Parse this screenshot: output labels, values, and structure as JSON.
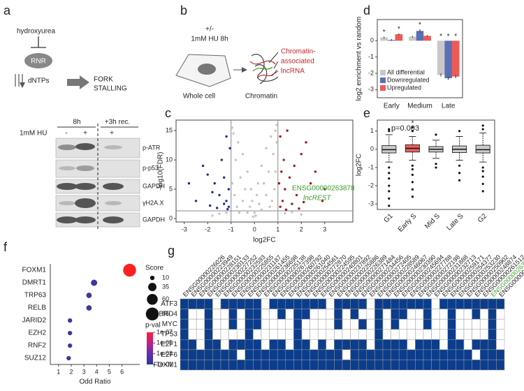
{
  "panel_a": {
    "label": "a",
    "drug": "hydroxyurea",
    "enzyme": "RNR",
    "product": "dNTPs",
    "outcome": [
      "FORK",
      "STALLING"
    ],
    "blot": {
      "timepoints": [
        "8h",
        "+3h rec."
      ],
      "treatment": "1mM HU",
      "lanes": [
        "-",
        "+",
        "+"
      ],
      "bands": [
        "p-ATR",
        "p-p53",
        "GAPDH",
        "γH2A.X",
        "GAPDH"
      ]
    }
  },
  "panel_b": {
    "label": "b",
    "treatment": [
      "+/-",
      "1mM HU 8h"
    ],
    "fractions": [
      "Whole cell",
      "Chromatin"
    ],
    "callout": [
      "Chromatin-",
      "associated",
      "lncRNA"
    ]
  },
  "chart_data": [
    {
      "panel": "c",
      "type": "scatter",
      "xlabel": "log2FC",
      "ylabel": "-log10(FDR)",
      "xlim": [
        -3.35,
        4.2
      ],
      "ylim": [
        -0.6,
        16.8
      ],
      "xticks": [
        -3,
        -2,
        -1,
        0,
        1,
        2,
        3
      ],
      "yticks": [
        0,
        5,
        10,
        15
      ],
      "thresholds": {
        "x": [
          -1,
          1
        ],
        "y": 1.3
      },
      "threshold_color": "#888888",
      "series": [
        {
          "color": "#c4c4c4",
          "x": [
            -0.9,
            -0.7,
            -0.5,
            -0.3,
            -0.1,
            0.1,
            0.3,
            0.5,
            0.7,
            0.9,
            -0.8,
            -0.6,
            -0.4,
            -0.2,
            0,
            0.2,
            0.4,
            0.6,
            0.8,
            0.95,
            -0.95,
            -0.85,
            -0.75,
            -0.65,
            0.65,
            0.75,
            0.85,
            0.9,
            -1.2,
            -1.5,
            1.3,
            1.6,
            -0.05,
            0.05,
            -0.5,
            0.5,
            -0.3,
            0.3,
            0.15,
            -0.15,
            -1.8,
            2.0,
            0.95,
            -0.95
          ],
          "values": [
            14.5,
            13,
            11,
            8,
            3,
            4,
            9,
            12,
            14,
            15,
            10,
            7,
            5,
            2,
            1,
            2.5,
            6,
            8,
            11,
            13,
            6,
            4,
            2,
            1,
            2,
            3,
            5,
            8,
            1,
            0.8,
            0.9,
            1.1,
            0.3,
            0.5,
            3,
            4,
            1,
            1.5,
            6,
            5,
            0.5,
            0.7,
            16,
            15.5
          ]
        },
        {
          "color": "#1f2f8c",
          "x": [
            -1.1,
            -1.2,
            -1.3,
            -1.5,
            -1.7,
            -2.0,
            -2.2,
            -1.4,
            -1.6,
            -1.1,
            -2.5,
            -1.9,
            -1.2,
            -1.05,
            -1.3,
            -2.8,
            -1.15,
            -1.8
          ],
          "values": [
            2,
            3,
            2.5,
            4,
            6,
            7.5,
            9,
            10,
            1.8,
            5,
            3,
            2.2,
            14,
            12,
            7,
            6,
            1.6,
            4.5
          ]
        },
        {
          "color": "#a11a1a",
          "x": [
            1.1,
            1.2,
            1.3,
            1.5,
            1.7,
            2.0,
            2.2,
            1.4,
            1.1,
            1.6,
            1.8,
            2.4,
            2.6,
            2.9,
            1.25,
            1.05,
            1.9,
            1.35,
            3.0,
            2.1,
            1.15
          ],
          "values": [
            2,
            3,
            5,
            7,
            9,
            11,
            13,
            15,
            14,
            2.5,
            4,
            6,
            8,
            3,
            10,
            6,
            1.7,
            1.5,
            5,
            2.8,
            8
          ]
        }
      ],
      "annotations": [
        "ENSG00000263878",
        "lncREST"
      ],
      "annotation_color": "#3a9a2a"
    },
    {
      "panel": "d",
      "type": "bar",
      "ylabel": "log2 enrichment vs random",
      "categories": [
        "Early",
        "Medium",
        "Late"
      ],
      "ylim": [
        -3.5,
        1.3
      ],
      "yticks": [
        -3,
        -2,
        -1,
        0
      ],
      "series": [
        {
          "name": "All differential",
          "color": "#c8c8c8",
          "values": [
            0.2,
            0.25,
            -2.1
          ],
          "errors": [
            0.05,
            0.05,
            0.1
          ],
          "annotations": [
            "*",
            null,
            "*"
          ]
        },
        {
          "name": "Downregulated",
          "color": "#5b6fb5",
          "values": [
            0.05,
            0.6,
            -2.3
          ],
          "errors": [
            0.05,
            0.1,
            0.1
          ],
          "annotations": [
            null,
            "*",
            "*"
          ]
        },
        {
          "name": "Upregulated",
          "color": "#ee5a55",
          "values": [
            0.4,
            0.3,
            -2.2
          ],
          "errors": [
            0.05,
            0.05,
            0.1
          ],
          "annotations": [
            "*",
            null,
            "*"
          ]
        }
      ]
    },
    {
      "panel": "e",
      "type": "box",
      "ylabel": "log2FC",
      "categories": [
        "G1",
        "Early S",
        "Mid S",
        "Late S",
        "G2"
      ],
      "ylim": [
        -3.3,
        1.6
      ],
      "yticks": [
        -3,
        -2,
        -1,
        0,
        1
      ],
      "colors": [
        "#cccccc",
        "#e8605a",
        "#cccccc",
        "#cccccc",
        "#cccccc"
      ],
      "median": [
        -0.02,
        0.05,
        0,
        0,
        -0.02
      ],
      "q1": [
        -0.2,
        -0.15,
        -0.15,
        -0.18,
        -0.2
      ],
      "q3": [
        0.2,
        0.25,
        0.15,
        0.18,
        0.22
      ],
      "whisker_low": [
        -0.7,
        -0.6,
        -0.5,
        -0.6,
        -0.7
      ],
      "whisker_high": [
        0.8,
        0.7,
        0.5,
        0.7,
        0.9
      ],
      "outliers": [
        [
          1.1,
          1.0,
          -1.0,
          -1.3,
          -1.6,
          -2.0,
          -2.3,
          -2.7,
          -3.1
        ],
        [
          1.2,
          1.0,
          -0.9,
          -1.1,
          -1.4,
          -1.8,
          -2.2,
          -2.6
        ],
        [
          0.8,
          -0.8,
          -1.0
        ],
        [
          1.0,
          -0.9,
          -1.3,
          -1.7
        ],
        [
          1.3,
          1.1,
          -1.0,
          -1.2,
          -1.5,
          -1.9,
          -2.3
        ]
      ],
      "annotations": [
        "p=0.003",
        "*"
      ]
    },
    {
      "panel": "f",
      "type": "dot",
      "xlabel": "Odd Ratio",
      "categories": [
        "FOXM1",
        "DMRT1",
        "TRP63",
        "RELB",
        "JARID2",
        "EZH2",
        "RNF2",
        "SUZ12"
      ],
      "values": [
        6.6,
        3.8,
        3.4,
        3.4,
        1.9,
        1.9,
        1.9,
        1.8
      ],
      "sizes": [
        85,
        20,
        15,
        15,
        10,
        10,
        10,
        10
      ],
      "colors": [
        "#ff2020",
        "#3a3aa0",
        "#3a3aa0",
        "#3a3aa0",
        "#3a3aa0",
        "#3a3aa0",
        "#3a3aa0",
        "#3a3aa0"
      ],
      "xlim": [
        0.35,
        7.4
      ],
      "xticks": [
        1,
        2,
        3,
        4,
        5,
        6
      ],
      "size_legend": {
        "title": "Score",
        "values": [
          10,
          35,
          60,
          85
        ]
      },
      "color_legend": {
        "title": "p-val",
        "clim": [
          1e-07,
          0.1
        ],
        "colors": [
          "#ff1a3a",
          "#c0208a",
          "#6030b0",
          "#2a3a9a"
        ],
        "ticks": [
          {
            "value": 1e-07,
            "label": "1e-07"
          },
          {
            "value": 1e-05,
            "label": "1e-05"
          },
          {
            "value": 0.001,
            "label": "1e-03"
          },
          {
            "value": 0.1,
            "label": "1e-01"
          }
        ]
      }
    },
    {
      "panel": "g",
      "type": "heatmap",
      "color": "#0b3d8c",
      "empty_color": "#ffffff",
      "highlighted": "ENSG00000263878",
      "highlight_color": "#4aa33a",
      "rows": [
        "ATF3",
        "BRD4",
        "MYC",
        "TP53",
        "E2F1",
        "E2F6",
        "FOXM1"
      ],
      "columns": [
        "ENSG00000226026",
        "ENSG00000223949",
        "ENSG00000228151",
        "ENSG00000230133",
        "ENSG00000227252",
        "ENSG00000232593",
        "ENSG00000225855",
        "ENSG00000231187",
        "ENSG00000261455",
        "ENSG00000236698",
        "ENSG00000225138",
        "ENSG00000267398",
        "ENSG00000260792",
        "ENSG00000261040",
        "ENSG00000254561",
        "ENSG00000272870",
        "ENSG00000224595",
        "ENSG00000240801",
        "ENSG00000237892",
        "ENSG00000225886",
        "ENSG00000226389",
        "ENSG00000271484",
        "ENSG00000234456",
        "ENSG00000272405",
        "ENSG00000228589",
        "ENSG00000246067",
        "ENSG00000230390",
        "ENSG00000245694",
        "ENSG00000227788",
        "ENSG00000272198",
        "ENSG00000231888",
        "ENSG00000232713",
        "ENSG00000259171",
        "ENSG00000254377",
        "ENSG00000253230",
        "ENSG00000250902",
        "ENSG00000248874",
        "ENSG00000261512",
        "ENSG00000263878",
        "ENSG00000226446"
      ],
      "values": [
        [
          1,
          1,
          1,
          1,
          0,
          1,
          1,
          1,
          1,
          1,
          0,
          1,
          1,
          1,
          1,
          1,
          1,
          1,
          0,
          1,
          1,
          1,
          1,
          0,
          1,
          1,
          1,
          1,
          1,
          1,
          1,
          0,
          1,
          1,
          1,
          1,
          1,
          1,
          1,
          1
        ],
        [
          1,
          0,
          0,
          1,
          0,
          0,
          1,
          0,
          1,
          1,
          0,
          0,
          1,
          0,
          1,
          1,
          0,
          0,
          0,
          1,
          0,
          1,
          0,
          0,
          1,
          0,
          1,
          1,
          0,
          0,
          1,
          0,
          0,
          1,
          0,
          0,
          1,
          0,
          1,
          0
        ],
        [
          1,
          0,
          0,
          1,
          0,
          0,
          1,
          0,
          1,
          1,
          0,
          0,
          0,
          0,
          1,
          0,
          0,
          0,
          0,
          1,
          0,
          0,
          1,
          0,
          1,
          0,
          1,
          0,
          0,
          0,
          1,
          0,
          0,
          1,
          0,
          0,
          0,
          0,
          1,
          0
        ],
        [
          1,
          0,
          0,
          1,
          0,
          0,
          0,
          0,
          1,
          0,
          0,
          0,
          0,
          0,
          1,
          0,
          0,
          0,
          0,
          0,
          0,
          0,
          0,
          0,
          1,
          0,
          0,
          0,
          0,
          0,
          0,
          0,
          0,
          1,
          0,
          0,
          0,
          0,
          1,
          0
        ],
        [
          1,
          1,
          0,
          1,
          1,
          0,
          1,
          1,
          1,
          1,
          0,
          1,
          1,
          0,
          1,
          1,
          0,
          1,
          0,
          1,
          1,
          1,
          1,
          0,
          1,
          1,
          1,
          1,
          0,
          1,
          1,
          1,
          0,
          1,
          1,
          0,
          1,
          1,
          1,
          0
        ],
        [
          1,
          1,
          1,
          1,
          1,
          1,
          1,
          0,
          1,
          1,
          1,
          1,
          1,
          1,
          1,
          1,
          1,
          1,
          1,
          1,
          0,
          1,
          1,
          1,
          1,
          1,
          1,
          1,
          1,
          1,
          1,
          1,
          1,
          1,
          1,
          1,
          0,
          1,
          1,
          1
        ],
        [
          1,
          1,
          1,
          1,
          1,
          1,
          1,
          1,
          1,
          1,
          1,
          1,
          1,
          1,
          1,
          1,
          1,
          1,
          1,
          1,
          1,
          1,
          1,
          1,
          1,
          1,
          1,
          1,
          1,
          1,
          1,
          1,
          1,
          1,
          1,
          1,
          1,
          1,
          1,
          1
        ]
      ]
    }
  ]
}
